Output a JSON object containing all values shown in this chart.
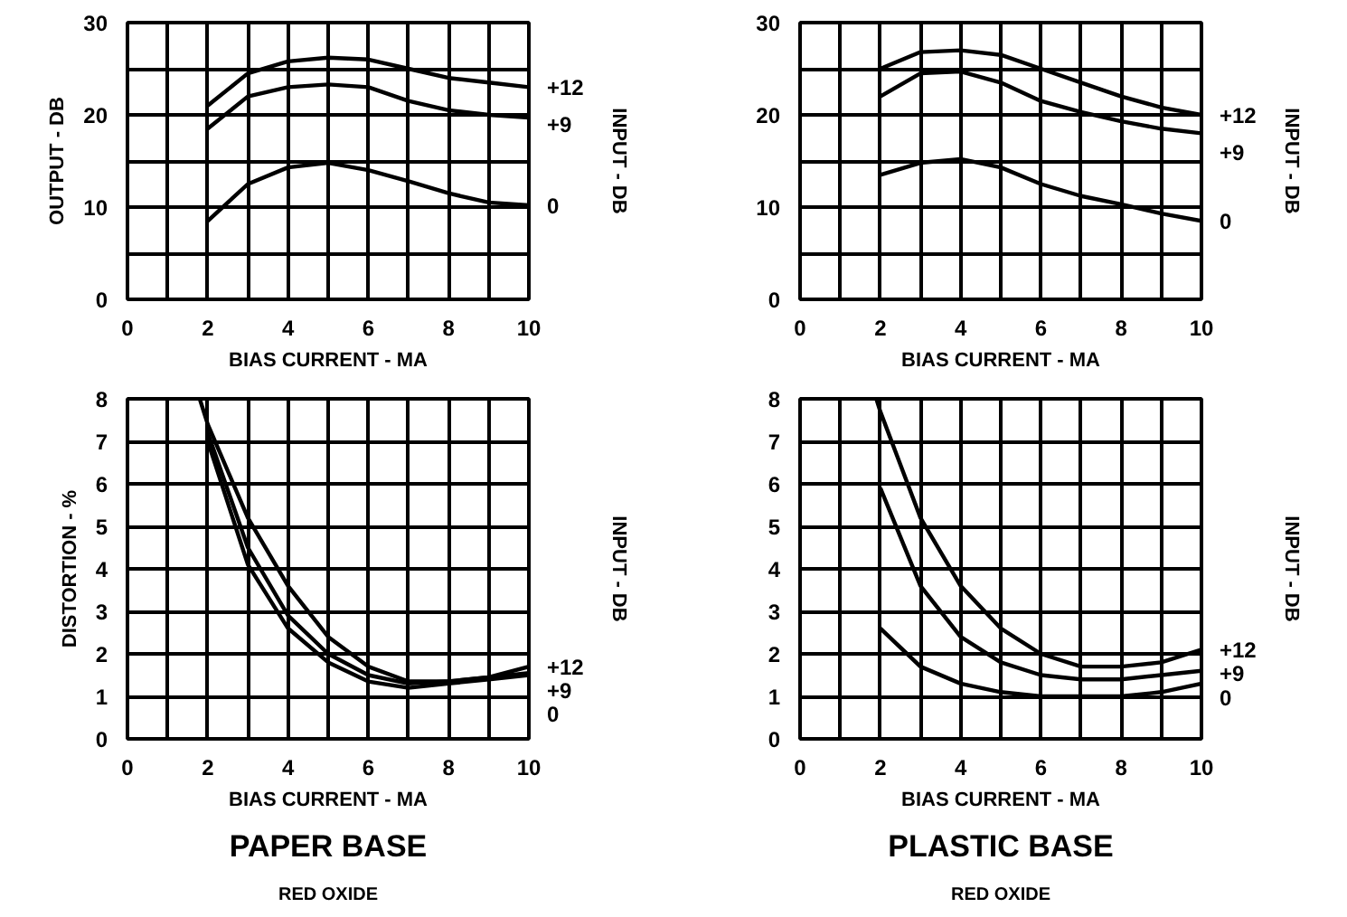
{
  "chart_data": [
    {
      "type": "line",
      "xlabel": "BIAS CURRENT - MA",
      "ylabel": "OUTPUT - DB",
      "y2label": "INPUT - DB",
      "xlim": [
        0,
        10
      ],
      "ylim": [
        0,
        30
      ],
      "xticks": [
        0,
        {
          "value": 1,
          "label": null
        },
        2,
        {
          "value": 3,
          "label": null
        },
        4,
        {
          "value": 5,
          "label": null
        },
        6,
        {
          "value": 7,
          "label": null
        },
        8,
        {
          "value": 9,
          "label": null
        },
        10
      ],
      "yticks": [
        0,
        {
          "value": 5,
          "label": null
        },
        10,
        {
          "value": 15,
          "label": null
        },
        20,
        {
          "value": 25,
          "label": null
        },
        30
      ],
      "grid": true,
      "series": [
        {
          "name": "+12",
          "color": "#000000",
          "x": [
            2,
            3,
            4,
            5,
            6,
            7,
            8,
            9,
            10
          ],
          "values": [
            21,
            24.5,
            25.8,
            26.2,
            26,
            25,
            24,
            23.5,
            23
          ]
        },
        {
          "name": "+9",
          "color": "#000000",
          "x": [
            2,
            3,
            4,
            5,
            6,
            7,
            8,
            9,
            10
          ],
          "values": [
            18.5,
            22,
            23,
            23.3,
            23,
            21.5,
            20.5,
            20,
            19.7
          ]
        },
        {
          "name": "0",
          "color": "#000000",
          "x": [
            2,
            3,
            4,
            5,
            6,
            7,
            8,
            9,
            10
          ],
          "values": [
            8.5,
            12.5,
            14.3,
            14.8,
            14,
            12.8,
            11.5,
            10.5,
            10.2
          ]
        }
      ]
    },
    {
      "type": "line",
      "xlabel": "BIAS CURRENT - MA",
      "y2label": "INPUT - DB",
      "xlim": [
        0,
        10
      ],
      "ylim": [
        0,
        30
      ],
      "xticks": [
        0,
        {
          "value": 1,
          "label": null
        },
        2,
        {
          "value": 3,
          "label": null
        },
        4,
        {
          "value": 5,
          "label": null
        },
        6,
        {
          "value": 7,
          "label": null
        },
        8,
        {
          "value": 9,
          "label": null
        },
        10
      ],
      "yticks": [
        0,
        {
          "value": 5,
          "label": null
        },
        10,
        {
          "value": 15,
          "label": null
        },
        20,
        {
          "value": 25,
          "label": null
        },
        30
      ],
      "grid": true,
      "series": [
        {
          "name": "+12",
          "color": "#000000",
          "x": [
            2,
            3,
            4,
            5,
            6,
            7,
            8,
            9,
            10
          ],
          "values": [
            25,
            26.8,
            27,
            26.5,
            25,
            23.5,
            22,
            20.8,
            20
          ]
        },
        {
          "name": "+9",
          "color": "#000000",
          "x": [
            2,
            3,
            4,
            5,
            6,
            7,
            8,
            9,
            10
          ],
          "values": [
            22,
            24.5,
            24.7,
            23.5,
            21.5,
            20.3,
            19.3,
            18.5,
            18
          ]
        },
        {
          "name": "0",
          "color": "#000000",
          "x": [
            2,
            3,
            4,
            5,
            6,
            7,
            8,
            9,
            10
          ],
          "values": [
            13.5,
            14.8,
            15.2,
            14.3,
            12.5,
            11.2,
            10.3,
            9.3,
            8.5
          ]
        }
      ]
    },
    {
      "type": "line",
      "title": "PAPER BASE",
      "subtitle": "RED OXIDE",
      "xlabel": "BIAS CURRENT - MA",
      "ylabel": "DISTORTION - %",
      "y2label": "INPUT - DB",
      "xlim": [
        0,
        10
      ],
      "ylim": [
        0,
        8
      ],
      "xticks": [
        0,
        {
          "value": 1,
          "label": null
        },
        2,
        {
          "value": 3,
          "label": null
        },
        4,
        {
          "value": 5,
          "label": null
        },
        6,
        {
          "value": 7,
          "label": null
        },
        8,
        {
          "value": 9,
          "label": null
        },
        10
      ],
      "yticks": [
        0,
        1,
        2,
        3,
        4,
        5,
        6,
        7,
        8
      ],
      "grid": true,
      "series": [
        {
          "name": "+12",
          "color": "#000000",
          "x": [
            1.8,
            2,
            3,
            4,
            5,
            6,
            7,
            8,
            9,
            10
          ],
          "values": [
            8,
            7.4,
            5.2,
            3.6,
            2.4,
            1.7,
            1.35,
            1.35,
            1.45,
            1.7
          ]
        },
        {
          "name": "+9",
          "color": "#000000",
          "x": [
            2,
            3,
            4,
            5,
            6,
            7,
            8,
            9,
            10
          ],
          "values": [
            7.2,
            4.5,
            2.9,
            2.0,
            1.5,
            1.3,
            1.35,
            1.45,
            1.55
          ]
        },
        {
          "name": "0",
          "color": "#000000",
          "x": [
            2,
            3,
            4,
            5,
            6,
            7,
            8,
            9,
            10
          ],
          "values": [
            7.0,
            4.1,
            2.6,
            1.8,
            1.35,
            1.2,
            1.3,
            1.4,
            1.5
          ]
        }
      ]
    },
    {
      "type": "line",
      "title": "PLASTIC BASE",
      "subtitle": "RED OXIDE",
      "xlabel": "BIAS CURRENT - MA",
      "y2label": "INPUT - DB",
      "xlim": [
        0,
        10
      ],
      "ylim": [
        0,
        8
      ],
      "xticks": [
        0,
        {
          "value": 1,
          "label": null
        },
        2,
        {
          "value": 3,
          "label": null
        },
        4,
        {
          "value": 5,
          "label": null
        },
        6,
        {
          "value": 7,
          "label": null
        },
        8,
        {
          "value": 9,
          "label": null
        },
        10
      ],
      "yticks": [
        0,
        1,
        2,
        3,
        4,
        5,
        6,
        7,
        8
      ],
      "grid": true,
      "series": [
        {
          "name": "+12",
          "color": "#000000",
          "x": [
            1.9,
            2,
            3,
            4,
            5,
            6,
            7,
            8,
            9,
            10
          ],
          "values": [
            8,
            7.7,
            5.2,
            3.6,
            2.6,
            2.0,
            1.7,
            1.7,
            1.8,
            2.1
          ]
        },
        {
          "name": "+9",
          "color": "#000000",
          "x": [
            2,
            3,
            4,
            5,
            6,
            7,
            8,
            9,
            10
          ],
          "values": [
            5.9,
            3.6,
            2.4,
            1.8,
            1.5,
            1.4,
            1.4,
            1.5,
            1.6
          ]
        },
        {
          "name": "0",
          "color": "#000000",
          "x": [
            2,
            3,
            4,
            5,
            6,
            7,
            8,
            9,
            10
          ],
          "values": [
            2.6,
            1.7,
            1.3,
            1.1,
            1.0,
            1.0,
            1.0,
            1.1,
            1.3
          ]
        }
      ]
    }
  ]
}
